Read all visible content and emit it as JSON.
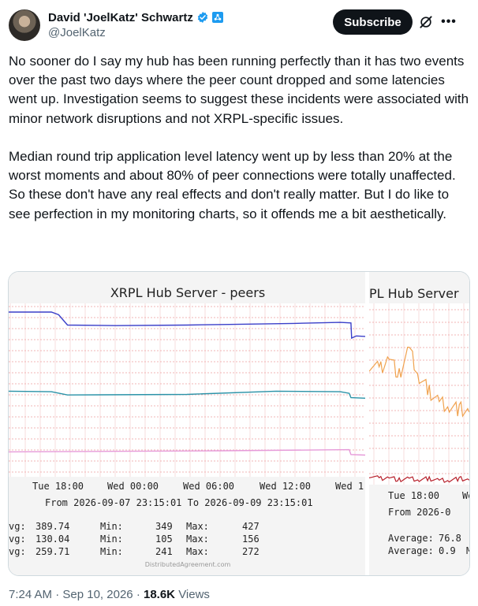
{
  "author": {
    "name": "David 'JoelKatz' Schwartz",
    "handle": "@JoelKatz"
  },
  "actions": {
    "subscribe_label": "Subscribe"
  },
  "tweet": {
    "text": "No sooner do I say my hub has been running perfectly than it has two events over the past two days where the peer count dropped and some latencies went up. Investigation seems to suggest these incidents were associated with minor network disruptions and not XRPL-specific issues.\n\nMedian round trip application level latency went up by less than 20% at the worst moments and about 80% of peer connections were totally unaffected. So these don't have any real effects and don't really matter. But I do like to see perfection in my monitoring charts, so it offends me a bit aesthetically.",
    "time": "7:24 AM",
    "date": "Sep 10, 2026",
    "views_count": "18.6K",
    "views_label": "Views"
  },
  "colors": {
    "blue_series": "#3a3fc9",
    "pink_series": "#e69ad9",
    "teal_series": "#2b93a8",
    "orange_series": "#f0a24e",
    "red_series": "#b7202b",
    "grid_major": "#f2b5b5",
    "grid_minor": "#f7dcdc"
  },
  "chart_data": [
    {
      "type": "line",
      "title": "XRPL Hub Server - peers",
      "x_tick_labels": [
        "Tue 18:00",
        "Wed 00:00",
        "Wed 06:00",
        "Wed 12:00",
        "Wed 1"
      ],
      "date_range": "From 2026-09-07 23:15:01 To 2026-09-09 23:15:01",
      "grid": true,
      "stats_rows": [
        {
          "avg_label": "vg:",
          "avg": "389.74",
          "min_label": "Min:",
          "min": "349",
          "max_label": "Max:",
          "max": "427"
        },
        {
          "avg_label": "vg:",
          "avg": "130.04",
          "min_label": "Min:",
          "min": "105",
          "max_label": "Max:",
          "max": "156"
        },
        {
          "avg_label": "vg:",
          "avg": "259.71",
          "min_label": "Min:",
          "min": "241",
          "max_label": "Max:",
          "max": "272"
        }
      ],
      "watermark": "DistributedAgreement.com",
      "series": [
        {
          "color": "#3a3fc9",
          "points": [
            [
              0,
              404
            ],
            [
              0.12,
              404
            ],
            [
              0.14,
              399
            ],
            [
              0.165,
              380
            ],
            [
              0.3,
              379
            ],
            [
              0.5,
              380
            ],
            [
              0.6,
              381
            ],
            [
              0.8,
              383
            ],
            [
              0.93,
              385
            ],
            [
              0.96,
              384
            ],
            [
              0.962,
              356
            ],
            [
              0.975,
              360
            ],
            [
              1.0,
              359
            ]
          ]
        },
        {
          "color": "#e69ad9",
          "points": [
            [
              0,
              146
            ],
            [
              0.3,
              147
            ],
            [
              0.6,
              148
            ],
            [
              0.955,
              150
            ],
            [
              0.96,
              141
            ],
            [
              1.0,
              140
            ]
          ]
        },
        {
          "color": "#2b93a8",
          "points": [
            [
              0,
              258
            ],
            [
              0.12,
              257
            ],
            [
              0.165,
              251
            ],
            [
              0.5,
              252
            ],
            [
              0.75,
              258
            ],
            [
              0.93,
              257
            ],
            [
              0.955,
              254
            ],
            [
              0.96,
              246
            ],
            [
              1.0,
              245
            ]
          ]
        }
      ]
    },
    {
      "type": "line",
      "title": "PL Hub Server",
      "x_tick_labels": [
        "Tue 18:00",
        "We"
      ],
      "date_range": "From 2026-0",
      "grid": true,
      "stats_rows": [
        {
          "label": "Average:",
          "value": "76.8"
        },
        {
          "label": "Average:",
          "value": "0.9",
          "suffix": "M"
        }
      ],
      "series": [
        {
          "color": "#f0a24e",
          "points": [
            [
              0,
              80
            ],
            [
              0.1,
              76
            ],
            [
              0.2,
              85
            ],
            [
              0.3,
              72
            ],
            [
              0.4,
              90
            ],
            [
              0.5,
              70
            ],
            [
              0.6,
              62
            ],
            [
              0.7,
              55
            ],
            [
              0.8,
              52
            ],
            [
              0.9,
              50
            ],
            [
              1.0,
              48
            ]
          ]
        },
        {
          "color": "#b7202b",
          "points": [
            [
              0,
              6
            ],
            [
              0.1,
              4
            ],
            [
              0.2,
              5
            ],
            [
              0.3,
              3
            ],
            [
              0.4,
              4
            ],
            [
              0.5,
              3
            ],
            [
              0.6,
              4
            ],
            [
              0.7,
              3
            ],
            [
              0.8,
              3
            ],
            [
              0.9,
              4
            ],
            [
              1.0,
              3
            ]
          ]
        }
      ]
    }
  ]
}
